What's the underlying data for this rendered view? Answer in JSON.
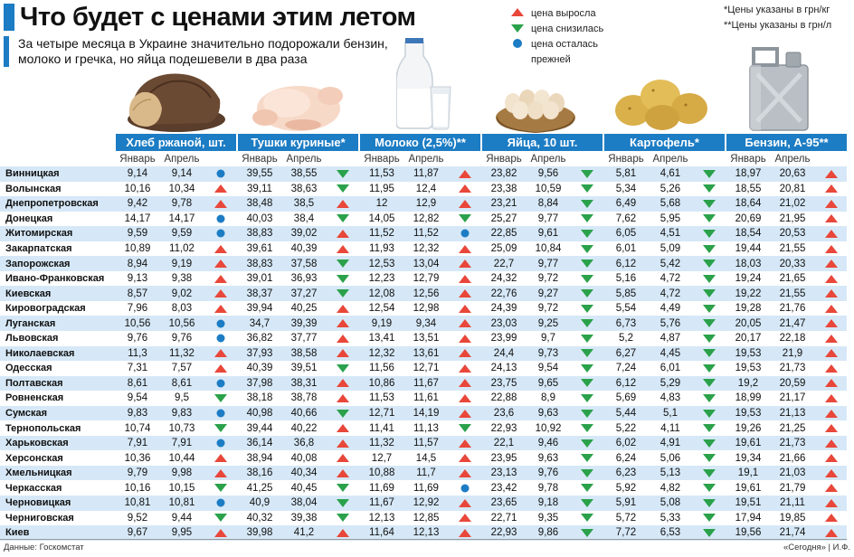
{
  "header": {
    "title": "Что будет с ценами этим летом",
    "subtitle": "За четыре месяца в Украине значительно подорожали бензин, молоко и гречка, но яйца подешевели в два раза"
  },
  "legend": {
    "up": "цена выросла",
    "down": "цена снизилась",
    "same": "цена осталась прежней",
    "colors": {
      "up": "#e8473a",
      "down": "#2aa14a",
      "same": "#1c7cc4"
    }
  },
  "notes": {
    "note1": "*Цены указаны в грн/кг",
    "note2": "**Цены указаны в грн/л"
  },
  "products": [
    {
      "name": "Хлеб ржаной, шт.",
      "icon": "bread-image"
    },
    {
      "name": "Тушки куриные*",
      "icon": "chicken-image"
    },
    {
      "name": "Молоко (2,5%)**",
      "icon": "milk-image"
    },
    {
      "name": "Яйца, 10 шт.",
      "icon": "eggs-image"
    },
    {
      "name": "Картофель*",
      "icon": "potato-image"
    },
    {
      "name": "Бензин, А-95**",
      "icon": "canister-image"
    }
  ],
  "col_headers": {
    "jan": "Январь",
    "apr": "Апрель"
  },
  "rows": [
    {
      "city": "Винницкая",
      "v": [
        [
          "9,14",
          "9,14",
          "same"
        ],
        [
          "39,55",
          "38,55",
          "down"
        ],
        [
          "11,53",
          "11,87",
          "up"
        ],
        [
          "23,82",
          "9,56",
          "down"
        ],
        [
          "5,81",
          "4,61",
          "down"
        ],
        [
          "18,97",
          "20,63",
          "up"
        ]
      ]
    },
    {
      "city": "Волынская",
      "v": [
        [
          "10,16",
          "10,34",
          "up"
        ],
        [
          "39,11",
          "38,63",
          "down"
        ],
        [
          "11,95",
          "12,4",
          "up"
        ],
        [
          "23,38",
          "10,59",
          "down"
        ],
        [
          "5,34",
          "5,26",
          "down"
        ],
        [
          "18,55",
          "20,81",
          "up"
        ]
      ]
    },
    {
      "city": "Днепропетровская",
      "v": [
        [
          "9,42",
          "9,78",
          "up"
        ],
        [
          "38,48",
          "38,5",
          "up"
        ],
        [
          "12",
          "12,9",
          "up"
        ],
        [
          "23,21",
          "8,84",
          "down"
        ],
        [
          "6,49",
          "5,68",
          "down"
        ],
        [
          "18,64",
          "21,02",
          "up"
        ]
      ]
    },
    {
      "city": "Донецкая",
      "v": [
        [
          "14,17",
          "14,17",
          "same"
        ],
        [
          "40,03",
          "38,4",
          "down"
        ],
        [
          "14,05",
          "12,82",
          "down"
        ],
        [
          "25,27",
          "9,77",
          "down"
        ],
        [
          "7,62",
          "5,95",
          "down"
        ],
        [
          "20,69",
          "21,95",
          "up"
        ]
      ]
    },
    {
      "city": "Житомирская",
      "v": [
        [
          "9,59",
          "9,59",
          "same"
        ],
        [
          "38,83",
          "39,02",
          "up"
        ],
        [
          "11,52",
          "11,52",
          "same"
        ],
        [
          "22,85",
          "9,61",
          "down"
        ],
        [
          "6,05",
          "4,51",
          "down"
        ],
        [
          "18,54",
          "20,53",
          "up"
        ]
      ]
    },
    {
      "city": "Закарпатская",
      "v": [
        [
          "10,89",
          "11,02",
          "up"
        ],
        [
          "39,61",
          "40,39",
          "up"
        ],
        [
          "11,93",
          "12,32",
          "up"
        ],
        [
          "25,09",
          "10,84",
          "down"
        ],
        [
          "6,01",
          "5,09",
          "down"
        ],
        [
          "19,44",
          "21,55",
          "up"
        ]
      ]
    },
    {
      "city": "Запорожская",
      "v": [
        [
          "8,94",
          "9,19",
          "up"
        ],
        [
          "38,83",
          "37,58",
          "down"
        ],
        [
          "12,53",
          "13,04",
          "up"
        ],
        [
          "22,7",
          "9,77",
          "down"
        ],
        [
          "6,12",
          "5,42",
          "down"
        ],
        [
          "18,03",
          "20,33",
          "up"
        ]
      ]
    },
    {
      "city": "Ивано-Франковская",
      "v": [
        [
          "9,13",
          "9,38",
          "up"
        ],
        [
          "39,01",
          "36,93",
          "down"
        ],
        [
          "12,23",
          "12,79",
          "up"
        ],
        [
          "24,32",
          "9,72",
          "down"
        ],
        [
          "5,16",
          "4,72",
          "down"
        ],
        [
          "19,24",
          "21,65",
          "up"
        ]
      ]
    },
    {
      "city": "Киевская",
      "v": [
        [
          "8,57",
          "9,02",
          "up"
        ],
        [
          "38,37",
          "37,27",
          "down"
        ],
        [
          "12,08",
          "12,56",
          "up"
        ],
        [
          "22,76",
          "9,27",
          "down"
        ],
        [
          "5,85",
          "4,72",
          "down"
        ],
        [
          "19,22",
          "21,55",
          "up"
        ]
      ]
    },
    {
      "city": "Кировоградская",
      "v": [
        [
          "7,96",
          "8,03",
          "up"
        ],
        [
          "39,94",
          "40,25",
          "up"
        ],
        [
          "12,54",
          "12,98",
          "up"
        ],
        [
          "24,39",
          "9,72",
          "down"
        ],
        [
          "5,54",
          "4,49",
          "down"
        ],
        [
          "19,28",
          "21,76",
          "up"
        ]
      ]
    },
    {
      "city": "Луганская",
      "v": [
        [
          "10,56",
          "10,56",
          "same"
        ],
        [
          "34,7",
          "39,39",
          "up"
        ],
        [
          "9,19",
          "9,34",
          "up"
        ],
        [
          "23,03",
          "9,25",
          "down"
        ],
        [
          "6,73",
          "5,76",
          "down"
        ],
        [
          "20,05",
          "21,47",
          "up"
        ]
      ]
    },
    {
      "city": "Львовская",
      "v": [
        [
          "9,76",
          "9,76",
          "same"
        ],
        [
          "36,82",
          "37,77",
          "up"
        ],
        [
          "13,41",
          "13,51",
          "up"
        ],
        [
          "23,99",
          "9,7",
          "down"
        ],
        [
          "5,2",
          "4,87",
          "down"
        ],
        [
          "20,17",
          "22,18",
          "up"
        ]
      ]
    },
    {
      "city": "Николаевская",
      "v": [
        [
          "11,3",
          "11,32",
          "up"
        ],
        [
          "37,93",
          "38,58",
          "up"
        ],
        [
          "12,32",
          "13,61",
          "up"
        ],
        [
          "24,4",
          "9,73",
          "down"
        ],
        [
          "6,27",
          "4,45",
          "down"
        ],
        [
          "19,53",
          "21,9",
          "up"
        ]
      ]
    },
    {
      "city": "Одесская",
      "v": [
        [
          "7,31",
          "7,57",
          "up"
        ],
        [
          "40,39",
          "39,51",
          "down"
        ],
        [
          "11,56",
          "12,71",
          "up"
        ],
        [
          "24,13",
          "9,54",
          "down"
        ],
        [
          "7,24",
          "6,01",
          "down"
        ],
        [
          "19,53",
          "21,73",
          "up"
        ]
      ]
    },
    {
      "city": "Полтавская",
      "v": [
        [
          "8,61",
          "8,61",
          "same"
        ],
        [
          "37,98",
          "38,31",
          "up"
        ],
        [
          "10,86",
          "11,67",
          "up"
        ],
        [
          "23,75",
          "9,65",
          "down"
        ],
        [
          "6,12",
          "5,29",
          "down"
        ],
        [
          "19,2",
          "20,59",
          "up"
        ]
      ]
    },
    {
      "city": "Ровненская",
      "v": [
        [
          "9,54",
          "9,5",
          "down"
        ],
        [
          "38,18",
          "38,78",
          "up"
        ],
        [
          "11,53",
          "11,61",
          "up"
        ],
        [
          "22,88",
          "8,9",
          "down"
        ],
        [
          "5,69",
          "4,83",
          "down"
        ],
        [
          "18,99",
          "21,17",
          "up"
        ]
      ]
    },
    {
      "city": "Сумская",
      "v": [
        [
          "9,83",
          "9,83",
          "same"
        ],
        [
          "40,98",
          "40,66",
          "down"
        ],
        [
          "12,71",
          "14,19",
          "up"
        ],
        [
          "23,6",
          "9,63",
          "down"
        ],
        [
          "5,44",
          "5,1",
          "down"
        ],
        [
          "19,53",
          "21,13",
          "up"
        ]
      ]
    },
    {
      "city": "Тернопольская",
      "v": [
        [
          "10,74",
          "10,73",
          "down"
        ],
        [
          "39,44",
          "40,22",
          "up"
        ],
        [
          "11,41",
          "11,13",
          "down"
        ],
        [
          "22,93",
          "10,92",
          "down"
        ],
        [
          "5,22",
          "4,11",
          "down"
        ],
        [
          "19,26",
          "21,25",
          "up"
        ]
      ]
    },
    {
      "city": "Харьковская",
      "v": [
        [
          "7,91",
          "7,91",
          "same"
        ],
        [
          "36,14",
          "36,8",
          "up"
        ],
        [
          "11,32",
          "11,57",
          "up"
        ],
        [
          "22,1",
          "9,46",
          "down"
        ],
        [
          "6,02",
          "4,91",
          "down"
        ],
        [
          "19,61",
          "21,73",
          "up"
        ]
      ]
    },
    {
      "city": "Херсонская",
      "v": [
        [
          "10,36",
          "10,44",
          "up"
        ],
        [
          "38,94",
          "40,08",
          "up"
        ],
        [
          "12,7",
          "14,5",
          "up"
        ],
        [
          "23,95",
          "9,63",
          "down"
        ],
        [
          "6,24",
          "5,06",
          "down"
        ],
        [
          "19,34",
          "21,66",
          "up"
        ]
      ]
    },
    {
      "city": "Хмельницкая",
      "v": [
        [
          "9,79",
          "9,98",
          "up"
        ],
        [
          "38,16",
          "40,34",
          "up"
        ],
        [
          "10,88",
          "11,7",
          "up"
        ],
        [
          "23,13",
          "9,76",
          "down"
        ],
        [
          "6,23",
          "5,13",
          "down"
        ],
        [
          "19,1",
          "21,03",
          "up"
        ]
      ]
    },
    {
      "city": "Черкасская",
      "v": [
        [
          "10,16",
          "10,15",
          "down"
        ],
        [
          "41,25",
          "40,45",
          "down"
        ],
        [
          "11,69",
          "11,69",
          "same"
        ],
        [
          "23,42",
          "9,78",
          "down"
        ],
        [
          "5,92",
          "4,82",
          "down"
        ],
        [
          "19,61",
          "21,79",
          "up"
        ]
      ]
    },
    {
      "city": "Черновицкая",
      "v": [
        [
          "10,81",
          "10,81",
          "same"
        ],
        [
          "40,9",
          "38,04",
          "down"
        ],
        [
          "11,67",
          "12,92",
          "up"
        ],
        [
          "23,65",
          "9,18",
          "down"
        ],
        [
          "5,91",
          "5,08",
          "down"
        ],
        [
          "19,51",
          "21,11",
          "up"
        ]
      ]
    },
    {
      "city": "Черниговская",
      "v": [
        [
          "9,52",
          "9,44",
          "down"
        ],
        [
          "40,32",
          "39,38",
          "down"
        ],
        [
          "12,13",
          "12,85",
          "up"
        ],
        [
          "22,71",
          "9,35",
          "down"
        ],
        [
          "5,72",
          "5,33",
          "down"
        ],
        [
          "17,94",
          "19,85",
          "up"
        ]
      ]
    },
    {
      "city": "Киев",
      "v": [
        [
          "9,67",
          "9,95",
          "up"
        ],
        [
          "39,98",
          "41,2",
          "up"
        ],
        [
          "11,64",
          "12,13",
          "up"
        ],
        [
          "22,93",
          "9,86",
          "down"
        ],
        [
          "7,72",
          "6,53",
          "down"
        ],
        [
          "19,56",
          "21,74",
          "up"
        ]
      ]
    }
  ],
  "footer": {
    "source": "Данные: Госкомстат",
    "credit": "«Сегодня» | И.Ф."
  }
}
